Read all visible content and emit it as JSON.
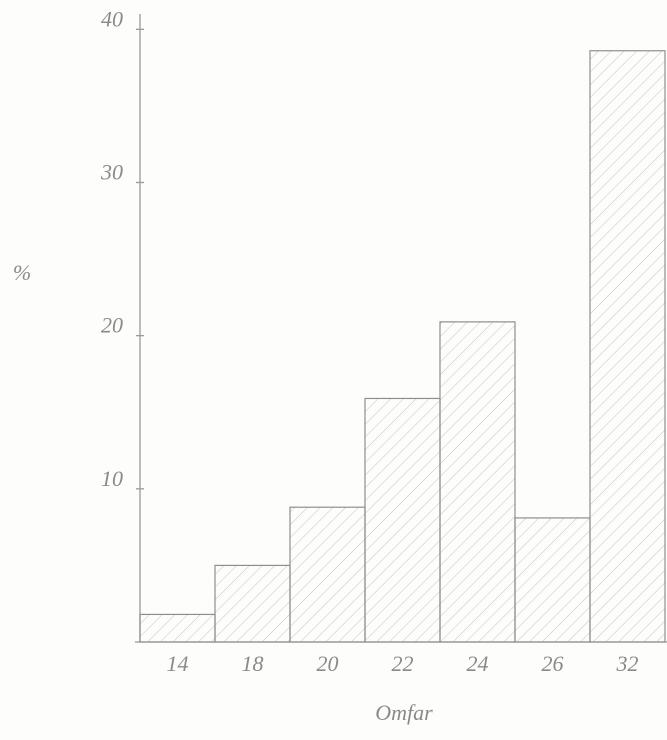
{
  "chart_data": {
    "type": "bar",
    "y_label": "%",
    "x_label": "Omfar",
    "categories": [
      "14",
      "18",
      "20",
      "22",
      "24",
      "26",
      "32"
    ],
    "values": [
      1.8,
      5,
      8.8,
      15.9,
      20.9,
      8.1,
      38.6
    ],
    "color": "#8f8f8a",
    "ylim": [
      0,
      41
    ],
    "yticks": [
      10,
      20,
      30,
      40
    ],
    "grid": false
  }
}
